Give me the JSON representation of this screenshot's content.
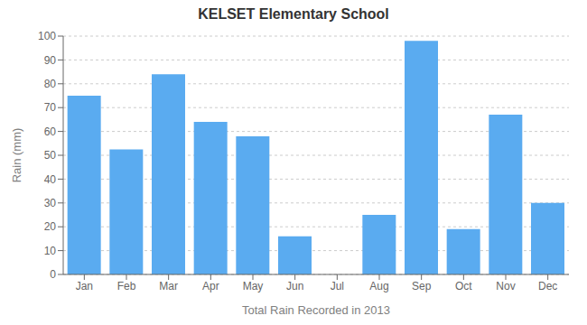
{
  "chart_data": {
    "type": "bar",
    "title": "KELSET Elementary School",
    "xlabel": "Total Rain Recorded in 2013",
    "ylabel": "Rain (mm)",
    "categories": [
      "Jan",
      "Feb",
      "Mar",
      "Apr",
      "May",
      "Jun",
      "Jul",
      "Aug",
      "Sep",
      "Oct",
      "Nov",
      "Dec"
    ],
    "values": [
      75,
      52.5,
      84,
      64,
      58,
      16,
      0,
      25,
      98,
      19,
      67,
      30
    ],
    "color": "#5aabf0",
    "ylim": [
      0,
      100
    ],
    "yticks": [
      0,
      10,
      20,
      30,
      40,
      50,
      60,
      70,
      80,
      90,
      100
    ],
    "grid": true
  }
}
